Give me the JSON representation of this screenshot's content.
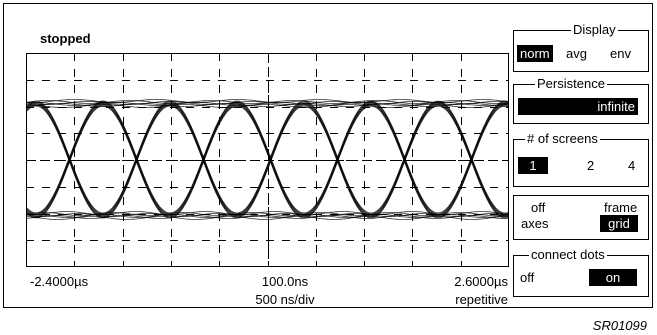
{
  "status": "stopped",
  "time_axis": {
    "left": "-2.4000µs",
    "center": "100.0ns",
    "right": "2.6000µs",
    "scale": "500 ns/div",
    "mode": "repetitive"
  },
  "panels": {
    "display": {
      "title": "Display",
      "options": [
        "norm",
        "avg",
        "env"
      ],
      "selected": "norm"
    },
    "persistence": {
      "title": "Persistence",
      "value": "infinite"
    },
    "screens": {
      "title": "# of screens",
      "options": [
        "1",
        "2",
        "4"
      ],
      "selected": "1"
    },
    "grid": {
      "off_label": "off",
      "axes_label": "axes",
      "frame_label": "frame",
      "grid_label": "grid",
      "selected": "grid"
    },
    "connect_dots": {
      "title": "connect dots",
      "off_label": "off",
      "on_label": "on",
      "selected": "on"
    }
  },
  "figure_id": "SR01099",
  "colors": {
    "trace": "#000000",
    "background": "#ffffff",
    "selected_bg": "#000000",
    "selected_fg": "#ffffff"
  }
}
